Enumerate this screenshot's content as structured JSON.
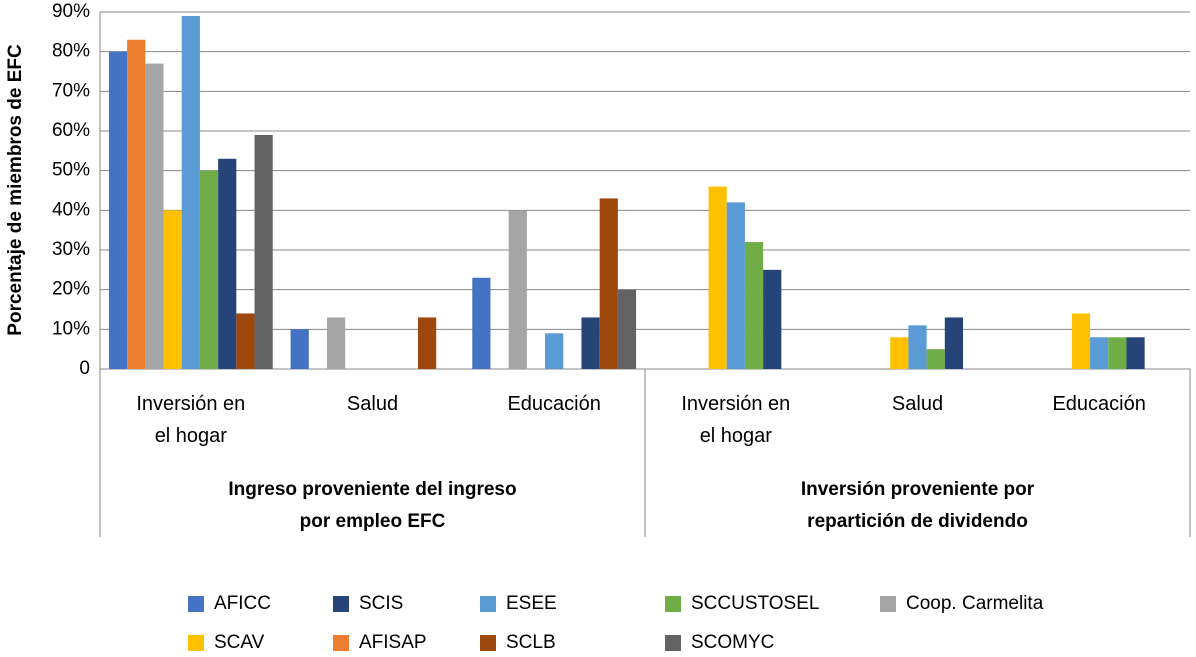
{
  "chart_data": {
    "type": "bar",
    "y_label": "Porcentaje de miembros de EFC",
    "groups": [
      "Ingreso proveniente del ingreso por empleo EFC",
      "Inversión proveniente por repartición de dividendo"
    ],
    "categories": [
      "Inversión en el hogar",
      "Salud",
      "Educación",
      "Inversión en el hogar",
      "Salud",
      "Educación"
    ],
    "series": [
      {
        "name": "AFICC",
        "color": "#4472c4",
        "values": [
          80,
          10,
          23,
          null,
          null,
          null
        ]
      },
      {
        "name": "AFISAP",
        "color": "#ed7d31",
        "values": [
          83,
          null,
          null,
          null,
          null,
          null
        ]
      },
      {
        "name": "Coop. Carmelita",
        "color": "#a5a5a5",
        "values": [
          77,
          13,
          40,
          null,
          null,
          null
        ]
      },
      {
        "name": "SCAV",
        "color": "#ffc000",
        "values": [
          40,
          null,
          null,
          46,
          8,
          14
        ]
      },
      {
        "name": "ESEE",
        "color": "#5b9bd5",
        "values": [
          89,
          null,
          9,
          42,
          11,
          8
        ]
      },
      {
        "name": "SCCUSTOSEL",
        "color": "#70ad47",
        "values": [
          50,
          null,
          null,
          32,
          5,
          8
        ]
      },
      {
        "name": "SCIS",
        "color": "#264478",
        "values": [
          53,
          null,
          13,
          25,
          13,
          8
        ]
      },
      {
        "name": "SCLB",
        "color": "#9e480e",
        "values": [
          14,
          13,
          43,
          null,
          null,
          null
        ]
      },
      {
        "name": "SCOMYC",
        "color": "#636363",
        "values": [
          59,
          null,
          20,
          null,
          null,
          null
        ]
      }
    ],
    "ylim": [
      0,
      90
    ],
    "yticks": [
      0,
      {
        "value": 10,
        "label": "10%"
      },
      {
        "value": 20,
        "label": "20%"
      },
      {
        "value": 30,
        "label": "30%"
      },
      {
        "value": 40,
        "label": "40%"
      },
      {
        "value": 50,
        "label": "50%"
      },
      {
        "value": 60,
        "label": "60%"
      },
      {
        "value": 70,
        "label": "70%"
      },
      {
        "value": 80,
        "label": "80%"
      },
      {
        "value": 90,
        "label": "90%"
      }
    ],
    "grid": true
  }
}
